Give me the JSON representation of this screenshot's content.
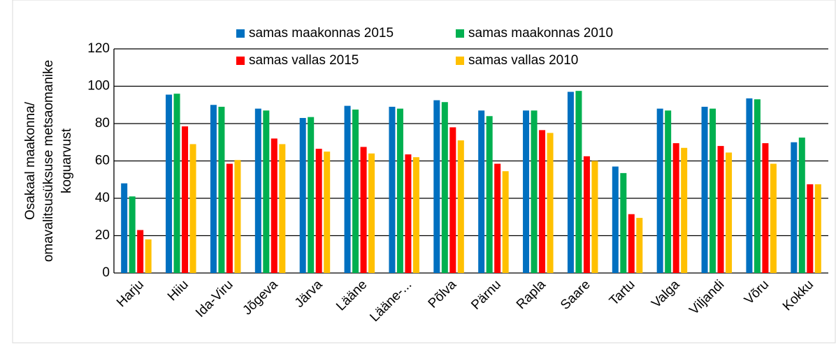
{
  "chart_data": {
    "type": "bar",
    "y_label": [
      "Osakaal maakonna/",
      "omavalitsusüksuse metsaomanike",
      "koguarvust"
    ],
    "categories": [
      "Harju",
      "Hiiu",
      "Ida-Viru",
      "Jõgeva",
      "Järva",
      "Lääne",
      "Lääne-...",
      "Põlva",
      "Pärnu",
      "Rapla",
      "Saare",
      "Tartu",
      "Valga",
      "Viljandi",
      "Võru",
      "Kokku"
    ],
    "series": [
      {
        "name": "samas maakonnas 2015",
        "color": "#0070c0",
        "values": [
          48,
          95.5,
          90,
          88,
          83,
          89.5,
          89,
          92.5,
          87,
          87,
          97,
          57,
          88,
          89,
          93.5,
          70
        ]
      },
      {
        "name": "samas maakonnas 2010",
        "color": "#00b050",
        "values": [
          41,
          96,
          89,
          87,
          83.5,
          87.5,
          88,
          91.5,
          84,
          87,
          97.5,
          53.5,
          87,
          88,
          93,
          72.5
        ]
      },
      {
        "name": "samas vallas 2015",
        "color": "#ff0000",
        "values": [
          23,
          78.5,
          58.5,
          72,
          66.5,
          67.5,
          63.5,
          78,
          58.5,
          76.5,
          62.5,
          31.5,
          69.5,
          68,
          69.5,
          47.5
        ]
      },
      {
        "name": "samas vallas 2010",
        "color": "#ffc000",
        "values": [
          18,
          69,
          60.5,
          69,
          65,
          64,
          62,
          71,
          54.5,
          75,
          60,
          29.5,
          67,
          64.5,
          58.5,
          47.5
        ]
      }
    ],
    "ylim": [
      0,
      120
    ],
    "yticks": [
      0,
      20,
      40,
      60,
      80,
      100,
      120
    ],
    "grid": true
  }
}
